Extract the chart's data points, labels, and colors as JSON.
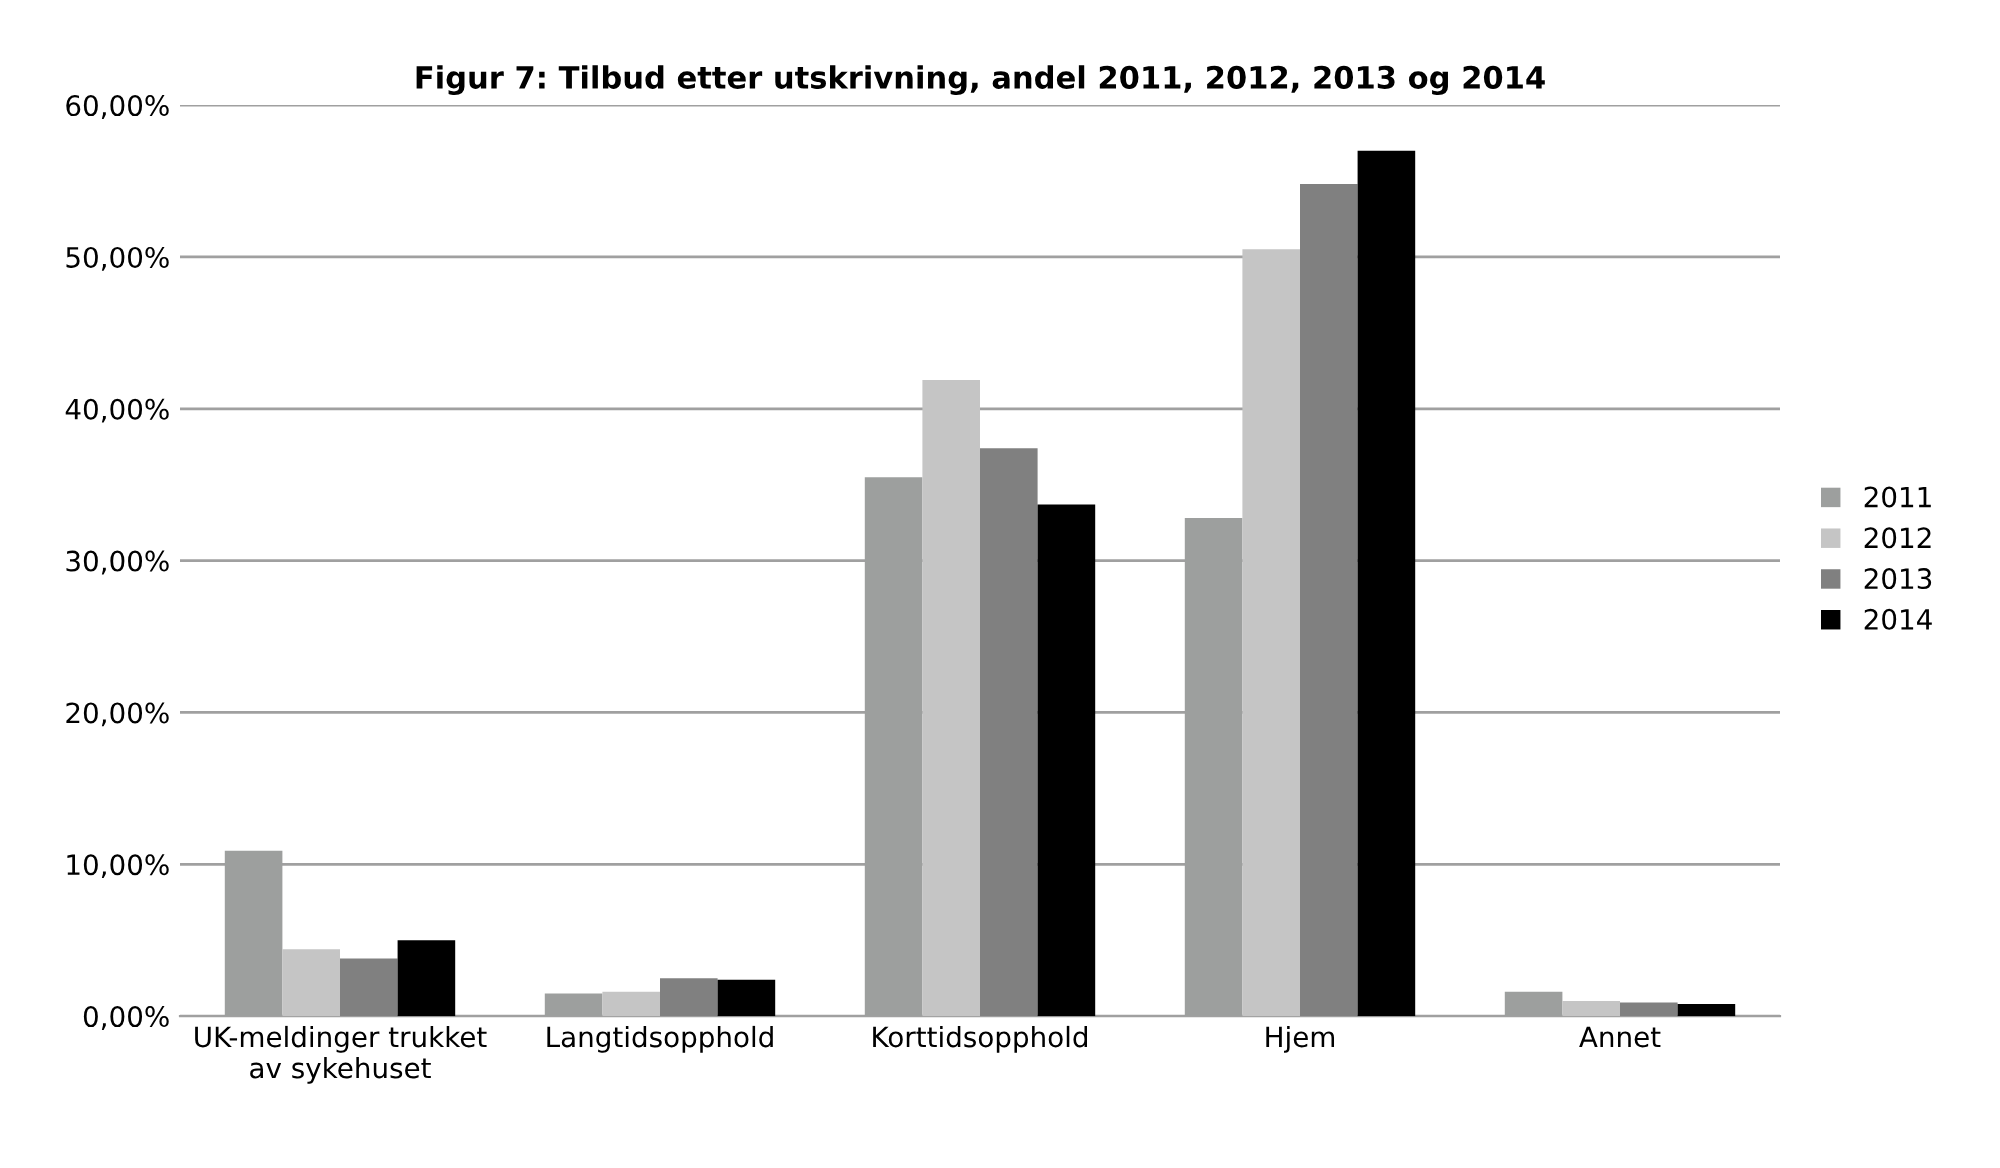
{
  "chart_data": {
    "type": "bar",
    "title": "Figur 7: Tilbud etter utskrivning, andel 2011, 2012, 2013 og 2014",
    "categories": [
      "UK-meldinger trukket\nav sykehuset",
      "Langtidsopphold",
      "Korttidsopphold",
      "Hjem",
      "Annet"
    ],
    "series": [
      {
        "name": "2011",
        "color": "#9d9f9e",
        "values": [
          10.9,
          1.5,
          35.5,
          32.8,
          1.6
        ]
      },
      {
        "name": "2012",
        "color": "#c5c5c5",
        "values": [
          4.4,
          1.6,
          41.9,
          50.5,
          1.0
        ]
      },
      {
        "name": "2013",
        "color": "#808080",
        "values": [
          3.8,
          2.5,
          37.4,
          54.8,
          0.9
        ]
      },
      {
        "name": "2014",
        "color": "#000000",
        "values": [
          5.0,
          2.4,
          33.7,
          57.0,
          0.8
        ]
      }
    ],
    "ylim": [
      0,
      60
    ],
    "yticks": [
      {
        "value": 0,
        "label": "0,00%"
      },
      {
        "value": 10,
        "label": "10,00%"
      },
      {
        "value": 20,
        "label": "20,00%"
      },
      {
        "value": 30,
        "label": "30,00%"
      },
      {
        "value": 40,
        "label": "40,00%"
      },
      {
        "value": 50,
        "label": "50,00%"
      },
      {
        "value": 60,
        "label": "60,00%"
      }
    ],
    "grid": "y",
    "legend": "right"
  }
}
